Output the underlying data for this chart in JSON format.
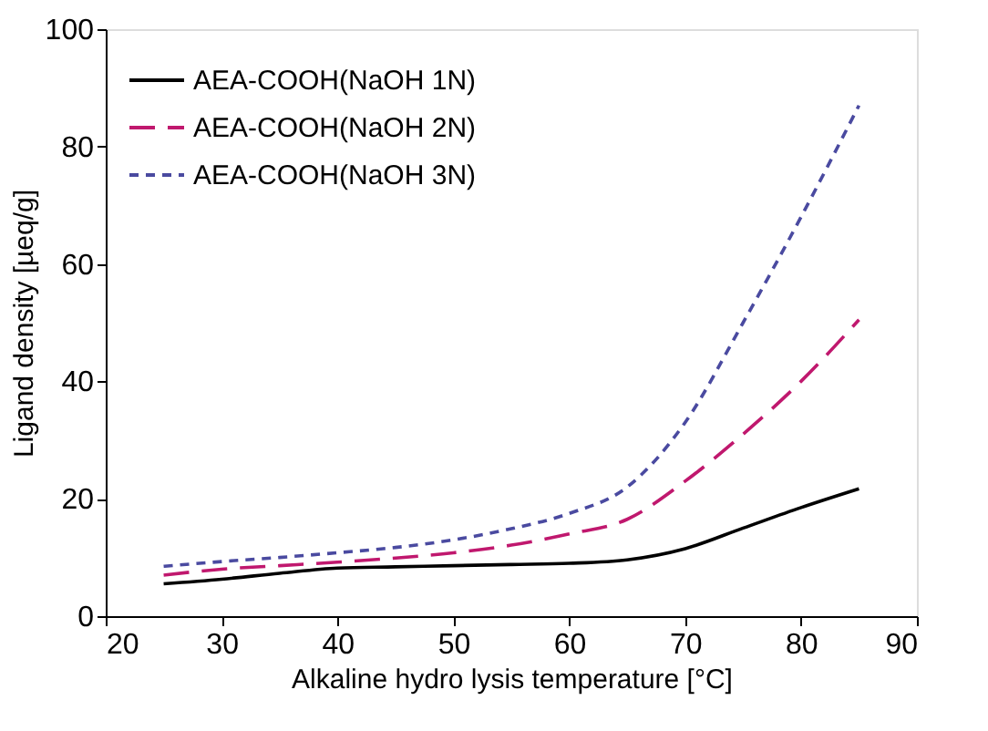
{
  "chart_data": {
    "type": "line",
    "xlabel": "Alkaline hydro lysis temperature [°C]",
    "ylabel": "Ligand density [µeq/g]",
    "x": [
      25,
      30,
      35,
      40,
      45,
      50,
      55,
      60,
      65,
      70,
      75,
      80,
      85
    ],
    "series": [
      {
        "name": "AEA-COOH(NaOH 1N)",
        "color": "#000000",
        "line_style": "solid",
        "values": [
          5.5,
          6.3,
          7.3,
          8.2,
          8.4,
          8.6,
          8.8,
          9.0,
          9.6,
          11.5,
          15,
          18.5,
          21.7
        ]
      },
      {
        "name": "AEA-COOH(NaOH 2N)",
        "color": "#c0186e",
        "line_style": "dashed",
        "values": [
          7.0,
          8.0,
          8.6,
          9.2,
          9.9,
          10.8,
          12.1,
          14.0,
          16.5,
          23,
          31,
          40,
          50.5
        ]
      },
      {
        "name": "AEA-COOH(NaOH 3N)",
        "color": "#4a4aa0",
        "line_style": "dotted",
        "values": [
          8.5,
          9.3,
          10.0,
          10.8,
          11.7,
          13.0,
          14.9,
          17.5,
          22,
          33,
          50,
          68,
          87
        ]
      }
    ],
    "xlim": [
      20,
      90
    ],
    "xticks": [
      20,
      30,
      40,
      50,
      60,
      70,
      80,
      90
    ],
    "ylim": [
      0,
      100
    ],
    "yticks": [
      0,
      20,
      40,
      60,
      80,
      100
    ],
    "grid": false,
    "legend": "top left",
    "marker": "none"
  }
}
